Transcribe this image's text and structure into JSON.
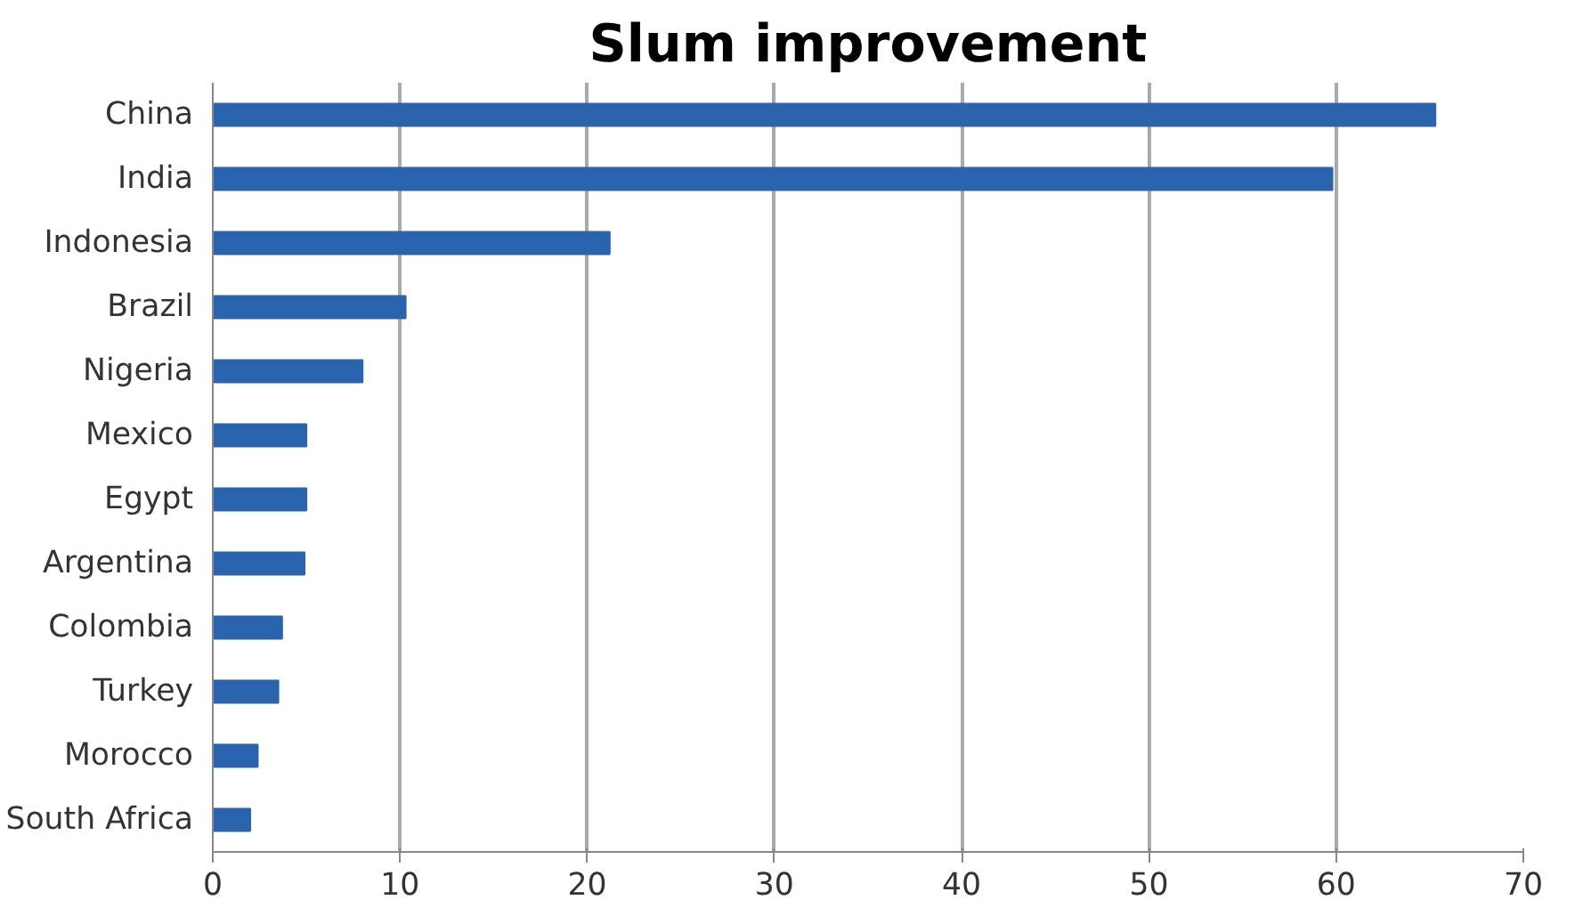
{
  "chart_data": {
    "type": "bar",
    "orientation": "horizontal",
    "title": "Slum improvement",
    "categories": [
      "China",
      "India",
      "Indonesia",
      "Brazil",
      "Nigeria",
      "Mexico",
      "Egypt",
      "Argentina",
      "Colombia",
      "Turkey",
      "Morocco",
      "South Africa"
    ],
    "values": [
      65.3,
      59.8,
      21.2,
      10.3,
      8.0,
      5.0,
      5.0,
      4.9,
      3.7,
      3.5,
      2.4,
      2.0
    ],
    "color": "#2a64ae",
    "xlim": [
      0,
      70
    ],
    "xticks": [
      0,
      10,
      20,
      30,
      40,
      50,
      60,
      70
    ],
    "grid": "x"
  }
}
